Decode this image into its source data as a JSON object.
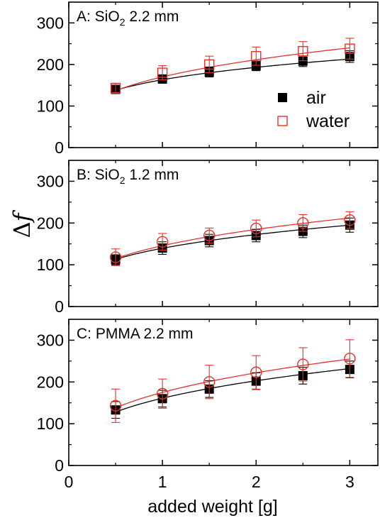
{
  "colors": {
    "air": "#000000",
    "water": "#e8302a"
  },
  "axis": {
    "xlabel": "added weight [g]",
    "ylabel_delta": "Δ",
    "ylabel_var": "f"
  },
  "legend": {
    "air_label": "air",
    "water_label": "water"
  },
  "chart_data": [
    {
      "type": "scatter",
      "title_main": "A: SiO",
      "title_sub": "2",
      "title_rest": " 2.2 mm",
      "xlim": [
        0,
        3.3
      ],
      "ylim": [
        0,
        350
      ],
      "xticks": [
        0,
        1,
        2,
        3
      ],
      "yticks": [
        0,
        100,
        200,
        300
      ],
      "x": [
        0.5,
        1,
        1.5,
        2,
        2.5,
        3
      ],
      "series": [
        {
          "name": "air",
          "marker": "filled-square",
          "values": [
            140,
            165,
            182,
            197,
            208,
            219
          ],
          "errors": [
            8,
            10,
            12,
            12,
            13,
            14
          ]
        },
        {
          "name": "water",
          "marker": "open-square",
          "values": [
            143,
            180,
            200,
            220,
            232,
            238
          ],
          "errors": [
            12,
            17,
            20,
            22,
            23,
            25
          ]
        }
      ],
      "fits": {
        "air": [
          138,
          213
        ],
        "water": [
          137,
          240
        ]
      }
    },
    {
      "type": "scatter",
      "title_main": "B: SiO",
      "title_sub": "2",
      "title_rest": " 1.2 mm",
      "xlim": [
        0,
        3.3
      ],
      "ylim": [
        0,
        350
      ],
      "xticks": [
        0,
        1,
        2,
        3
      ],
      "yticks": [
        0,
        100,
        200,
        300
      ],
      "x": [
        0.5,
        1,
        1.5,
        2,
        2.5,
        3
      ],
      "series": [
        {
          "name": "air",
          "marker": "filled-square",
          "values": [
            112,
            140,
            158,
            170,
            180,
            195
          ],
          "errors": [
            12,
            15,
            15,
            15,
            15,
            17
          ]
        },
        {
          "name": "water",
          "marker": "open-circle",
          "values": [
            118,
            155,
            170,
            187,
            200,
            207
          ],
          "errors": [
            20,
            20,
            18,
            20,
            20,
            20
          ]
        }
      ],
      "fits": {
        "air": [
          113,
          195
        ],
        "water": [
          115,
          212
        ]
      }
    },
    {
      "type": "scatter",
      "title_main": "C: PMMA 2.2 mm",
      "title_sub": "",
      "title_rest": "",
      "xlim": [
        0,
        3.3
      ],
      "ylim": [
        0,
        350
      ],
      "xticks": [
        0,
        1,
        2,
        3
      ],
      "yticks": [
        0,
        100,
        200,
        300
      ],
      "x": [
        0.5,
        1,
        1.5,
        2,
        2.5,
        3
      ],
      "series": [
        {
          "name": "air",
          "marker": "filled-square",
          "values": [
            133,
            160,
            183,
            202,
            215,
            230
          ],
          "errors": [
            20,
            20,
            20,
            20,
            20,
            20
          ]
        },
        {
          "name": "water",
          "marker": "open-circle",
          "values": [
            143,
            172,
            200,
            223,
            242,
            256
          ],
          "errors": [
            40,
            35,
            40,
            40,
            40,
            45
          ]
        }
      ],
      "fits": {
        "air": [
          128,
          232
        ],
        "water": [
          138,
          255
        ]
      }
    }
  ]
}
